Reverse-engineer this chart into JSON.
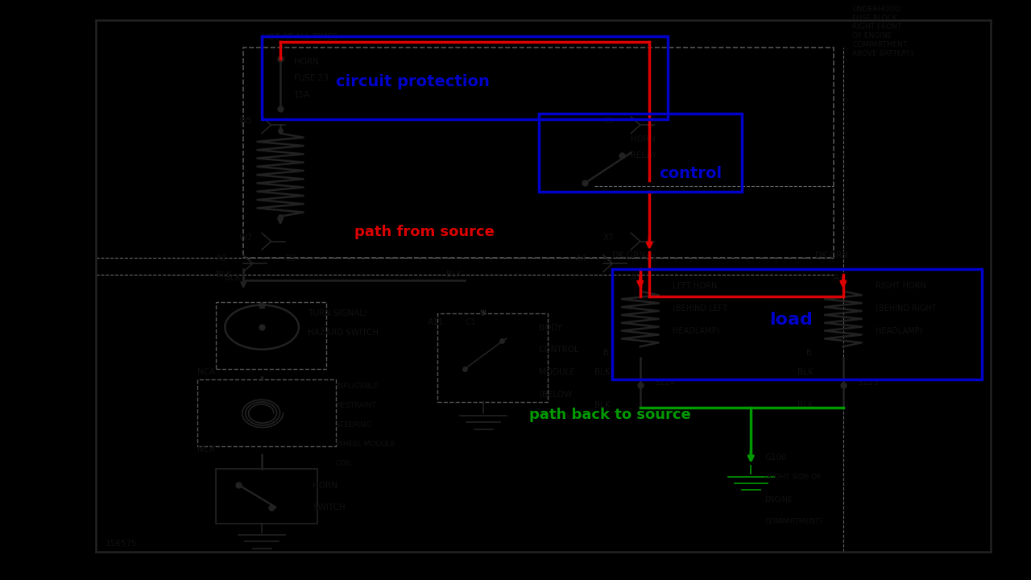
{
  "bg_color": "#000000",
  "diagram_bg": "#d8d8d8",
  "red_color": "#dd0000",
  "blue_color": "#0000cc",
  "green_color": "#009900",
  "text_color": "#111111",
  "wire_color": "#222222",
  "label_circuit_protection": "circuit protection",
  "label_path_from_source": "path from source",
  "label_control": "control",
  "label_load": "load",
  "label_path_back": "path back to source"
}
